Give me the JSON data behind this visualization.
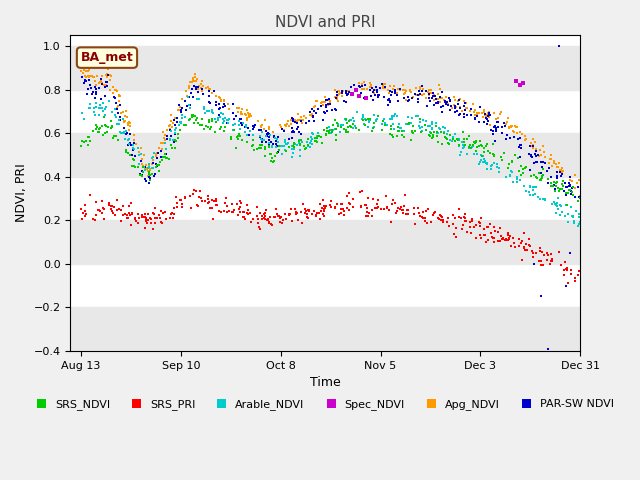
{
  "title": "NDVI and PRI",
  "xlabel": "Time",
  "ylabel": "NDVI, PRI",
  "ylim": [
    -0.4,
    1.05
  ],
  "annotation": "BA_met",
  "legend_entries": [
    "SRS_NDVI",
    "SRS_PRI",
    "Arable_NDVI",
    "Spec_NDVI",
    "Apg_NDVI",
    "PAR-SW NDVI"
  ],
  "colors": {
    "SRS_NDVI": "#00cc00",
    "SRS_PRI": "#ff0000",
    "Arable_NDVI": "#00cccc",
    "Spec_NDVI": "#cc00cc",
    "Apg_NDVI": "#ff9900",
    "PAR-SW NDVI": "#0000cc"
  },
  "marker_size": 4,
  "yticks": [
    -0.4,
    -0.2,
    0.0,
    0.2,
    0.4,
    0.6,
    0.8,
    1.0
  ],
  "xtick_labels": [
    "Aug 13",
    "Sep 10",
    "Oct 8",
    "Nov 5",
    "Dec 3",
    "Dec 31"
  ],
  "bg_color": "#f0f0f0",
  "plot_bg_color": "#ffffff",
  "band_color": "#e8e8e8"
}
